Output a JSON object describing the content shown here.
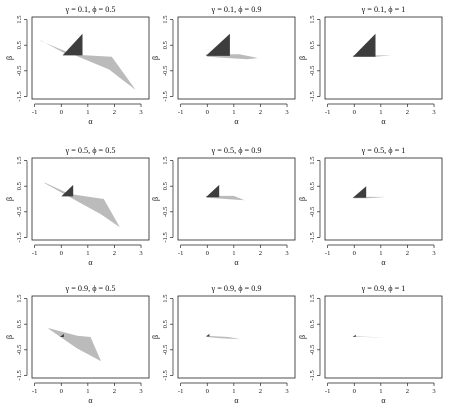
{
  "chart_data": [
    {
      "type": "polygon",
      "title": "γ = 0.1,  ϕ = 0.5",
      "xlabel": "α",
      "ylabel": "β",
      "xlim": [
        -1.1,
        3.3
      ],
      "ylim": [
        -1.6,
        1.6
      ],
      "xticks": [
        -1,
        0,
        1,
        2,
        3
      ],
      "yticks": [
        1.5,
        0.5,
        -0.5,
        -1.5
      ],
      "series": [
        {
          "name": "gray",
          "color": "#bbbbbb",
          "points": [
            [
              -0.8,
              0.7
            ],
            [
              0.2,
              0.15
            ],
            [
              1.9,
              0.05
            ],
            [
              2.8,
              -1.25
            ],
            [
              1.8,
              -0.45
            ],
            [
              -0.75,
              0.65
            ]
          ]
        },
        {
          "name": "dark",
          "color": "#3d3d3d",
          "points": [
            [
              0.05,
              0.1
            ],
            [
              0.8,
              0.95
            ],
            [
              0.8,
              0.1
            ]
          ]
        }
      ]
    },
    {
      "type": "polygon",
      "title": "γ = 0.1,  ϕ = 0.9",
      "xlabel": "α",
      "ylabel": "β",
      "xlim": [
        -1.1,
        3.3
      ],
      "ylim": [
        -1.6,
        1.6
      ],
      "xticks": [
        -1,
        0,
        1,
        2,
        3
      ],
      "yticks": [
        1.5,
        0.5,
        -0.5,
        -1.5
      ],
      "series": [
        {
          "name": "gray",
          "color": "#bbbbbb",
          "points": [
            [
              -0.05,
              0.15
            ],
            [
              1.2,
              0.15
            ],
            [
              1.9,
              0.0
            ],
            [
              1.5,
              -0.05
            ],
            [
              0.0,
              0.05
            ]
          ]
        },
        {
          "name": "dark",
          "color": "#3d3d3d",
          "points": [
            [
              -0.05,
              0.08
            ],
            [
              0.85,
              0.95
            ],
            [
              0.85,
              0.08
            ]
          ]
        }
      ]
    },
    {
      "type": "polygon",
      "title": "γ = 0.1,  ϕ = 1",
      "xlabel": "α",
      "ylabel": "β",
      "xlim": [
        -1.1,
        3.3
      ],
      "ylim": [
        -1.6,
        1.6
      ],
      "xticks": [
        -1,
        0,
        1,
        2,
        3
      ],
      "yticks": [
        1.5,
        0.5,
        -0.5,
        -1.5
      ],
      "series": [
        {
          "name": "gray",
          "color": "#bbbbbb",
          "points": [
            [
              -0.05,
              0.1
            ],
            [
              1.4,
              0.1
            ],
            [
              0.8,
              0.05
            ],
            [
              -0.05,
              0.05
            ]
          ]
        },
        {
          "name": "dark",
          "color": "#3d3d3d",
          "points": [
            [
              -0.05,
              0.05
            ],
            [
              0.8,
              0.95
            ],
            [
              0.8,
              0.05
            ]
          ]
        }
      ]
    },
    {
      "type": "polygon",
      "title": "γ = 0.5,  ϕ = 0.5",
      "xlabel": "α",
      "ylabel": "β",
      "xlim": [
        -1.1,
        3.3
      ],
      "ylim": [
        -1.6,
        1.6
      ],
      "xticks": [
        -1,
        0,
        1,
        2,
        3
      ],
      "yticks": [
        1.5,
        0.5,
        -0.5,
        -1.5
      ],
      "series": [
        {
          "name": "gray",
          "color": "#bbbbbb",
          "points": [
            [
              -0.65,
              0.65
            ],
            [
              0.3,
              0.2
            ],
            [
              1.6,
              0.0
            ],
            [
              2.2,
              -1.1
            ],
            [
              1.5,
              -0.6
            ],
            [
              -0.6,
              0.6
            ]
          ]
        },
        {
          "name": "dark",
          "color": "#3d3d3d",
          "points": [
            [
              0.0,
              0.1
            ],
            [
              0.45,
              0.55
            ],
            [
              0.45,
              0.1
            ]
          ]
        }
      ]
    },
    {
      "type": "polygon",
      "title": "γ = 0.5,  ϕ = 0.9",
      "xlabel": "α",
      "ylabel": "β",
      "xlim": [
        -1.1,
        3.3
      ],
      "ylim": [
        -1.6,
        1.6
      ],
      "xticks": [
        -1,
        0,
        1,
        2,
        3
      ],
      "yticks": [
        1.5,
        0.5,
        -0.5,
        -1.5
      ],
      "series": [
        {
          "name": "gray",
          "color": "#bbbbbb",
          "points": [
            [
              -0.05,
              0.12
            ],
            [
              1.0,
              0.12
            ],
            [
              1.4,
              -0.05
            ],
            [
              0.7,
              0.0
            ],
            [
              0.0,
              0.05
            ]
          ]
        },
        {
          "name": "dark",
          "color": "#3d3d3d",
          "points": [
            [
              -0.05,
              0.07
            ],
            [
              0.45,
              0.55
            ],
            [
              0.45,
              0.07
            ]
          ]
        }
      ]
    },
    {
      "type": "polygon",
      "title": "γ = 0.5,  ϕ = 1",
      "xlabel": "α",
      "ylabel": "β",
      "xlim": [
        -1.1,
        3.3
      ],
      "ylim": [
        -1.6,
        1.6
      ],
      "xticks": [
        -1,
        0,
        1,
        2,
        3
      ],
      "yticks": [
        1.5,
        0.5,
        -0.5,
        -1.5
      ],
      "series": [
        {
          "name": "gray",
          "color": "#bbbbbb",
          "points": [
            [
              -0.05,
              0.08
            ],
            [
              1.2,
              0.08
            ],
            [
              0.5,
              0.03
            ],
            [
              -0.05,
              0.03
            ]
          ]
        },
        {
          "name": "dark",
          "color": "#3d3d3d",
          "points": [
            [
              -0.05,
              0.05
            ],
            [
              0.45,
              0.5
            ],
            [
              0.45,
              0.05
            ]
          ]
        }
      ]
    },
    {
      "type": "polygon",
      "title": "γ = 0.9,  ϕ = 0.5",
      "xlabel": "α",
      "ylabel": "β",
      "xlim": [
        -1.1,
        3.3
      ],
      "ylim": [
        -1.6,
        1.6
      ],
      "xticks": [
        -1,
        0,
        1,
        2,
        3
      ],
      "yticks": [
        1.5,
        0.5,
        -0.5,
        -1.5
      ],
      "series": [
        {
          "name": "gray",
          "color": "#bbbbbb",
          "points": [
            [
              -0.5,
              0.35
            ],
            [
              0.6,
              0.05
            ],
            [
              1.1,
              0.0
            ],
            [
              1.5,
              -0.95
            ],
            [
              0.6,
              -0.45
            ],
            [
              -0.45,
              0.3
            ]
          ]
        },
        {
          "name": "dark",
          "color": "#3d3d3d",
          "points": [
            [
              -0.05,
              0.0
            ],
            [
              0.1,
              0.12
            ],
            [
              0.1,
              0.0
            ]
          ]
        }
      ]
    },
    {
      "type": "polygon",
      "title": "γ = 0.9,  ϕ = 0.9",
      "xlabel": "α",
      "ylabel": "β",
      "xlim": [
        -1.1,
        3.3
      ],
      "ylim": [
        -1.6,
        1.6
      ],
      "xticks": [
        -1,
        0,
        1,
        2,
        3
      ],
      "yticks": [
        1.5,
        0.5,
        -0.5,
        -1.5
      ],
      "series": [
        {
          "name": "gray",
          "color": "#bbbbbb",
          "points": [
            [
              -0.05,
              0.05
            ],
            [
              0.8,
              0.0
            ],
            [
              1.25,
              -0.08
            ],
            [
              0.5,
              -0.05
            ],
            [
              0.0,
              0.0
            ]
          ]
        },
        {
          "name": "dark",
          "color": "#3d3d3d",
          "points": [
            [
              -0.05,
              0.02
            ],
            [
              0.08,
              0.12
            ],
            [
              0.08,
              0.02
            ]
          ]
        }
      ]
    },
    {
      "type": "polygon",
      "title": "γ = 0.9,  ϕ = 1",
      "xlabel": "α",
      "ylabel": "β",
      "xlim": [
        -1.1,
        3.3
      ],
      "ylim": [
        -1.6,
        1.6
      ],
      "xticks": [
        -1,
        0,
        1,
        2,
        3
      ],
      "yticks": [
        1.5,
        0.5,
        -0.5,
        -1.5
      ],
      "series": [
        {
          "name": "gray",
          "color": "#bbbbbb",
          "points": [
            [
              -0.05,
              0.03
            ],
            [
              1.1,
              -0.02
            ],
            [
              0.4,
              0.0
            ],
            [
              -0.05,
              0.0
            ]
          ]
        },
        {
          "name": "dark",
          "color": "#3d3d3d",
          "points": [
            [
              -0.05,
              0.01
            ],
            [
              0.06,
              0.09
            ],
            [
              0.06,
              0.01
            ]
          ]
        }
      ]
    }
  ]
}
